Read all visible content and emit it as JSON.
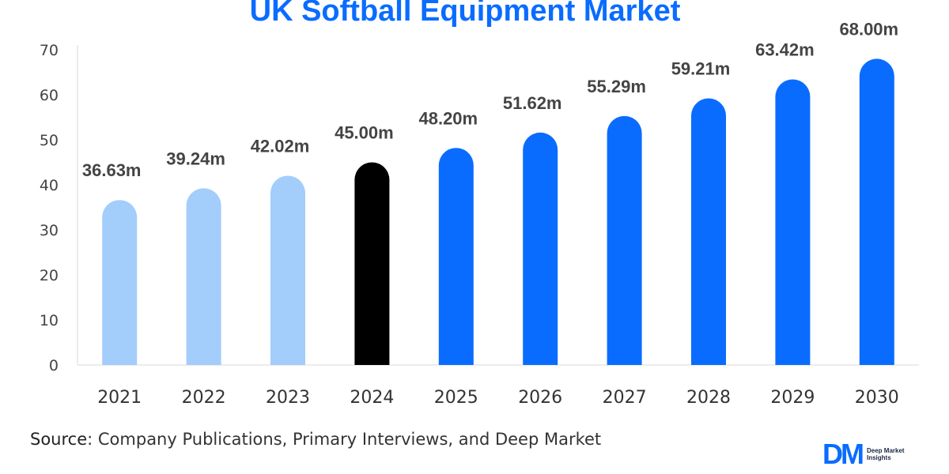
{
  "chart_data": {
    "type": "bar",
    "title": "UK Softball Equipment Market",
    "categories": [
      "2021",
      "2022",
      "2023",
      "2024",
      "2025",
      "2026",
      "2027",
      "2028",
      "2029",
      "2030"
    ],
    "values": [
      36.63,
      39.24,
      42.02,
      45.0,
      48.2,
      51.62,
      55.29,
      59.21,
      63.42,
      68.0
    ],
    "data_labels": [
      "36.63m",
      "39.24m",
      "42.02m",
      "45.00m",
      "48.20m",
      "51.62m",
      "55.29m",
      "59.21m",
      "63.42m",
      "68.00m"
    ],
    "yticks": [
      "0",
      "10",
      "20",
      "30",
      "40",
      "50",
      "60",
      "70"
    ],
    "ylim": [
      0,
      70
    ],
    "xlabel": "",
    "ylabel": "",
    "grid": false,
    "bar_colors": [
      "#a3cdfb",
      "#a3cdfb",
      "#a3cdfb",
      "#000000",
      "#0a6cff",
      "#0a6cff",
      "#0a6cff",
      "#0a6cff",
      "#0a6cff",
      "#0a6cff"
    ],
    "title_color": "#0a6cff"
  },
  "source": {
    "label": "Source",
    "text": ": Company Publications, Primary Interviews, and Deep Market"
  },
  "logo": {
    "mark": "DM",
    "text": "Deep Market Insights"
  }
}
